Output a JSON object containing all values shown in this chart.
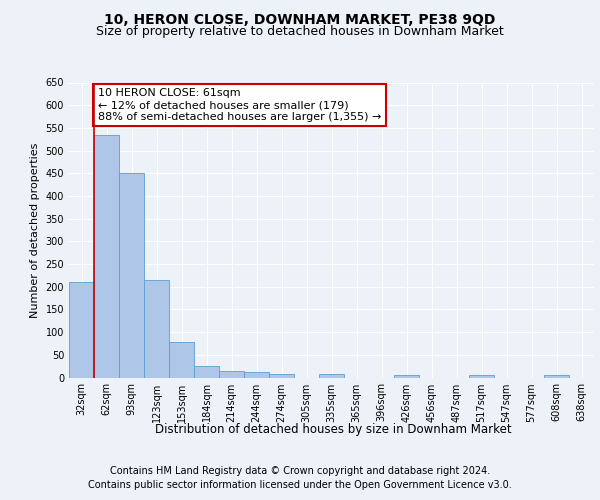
{
  "title1": "10, HERON CLOSE, DOWNHAM MARKET, PE38 9QD",
  "title2": "Size of property relative to detached houses in Downham Market",
  "xlabel": "Distribution of detached houses by size in Downham Market",
  "ylabel": "Number of detached properties",
  "categories": [
    "32sqm",
    "62sqm",
    "93sqm",
    "123sqm",
    "153sqm",
    "184sqm",
    "214sqm",
    "244sqm",
    "274sqm",
    "305sqm",
    "335sqm",
    "365sqm",
    "396sqm",
    "426sqm",
    "456sqm",
    "487sqm",
    "517sqm",
    "547sqm",
    "577sqm",
    "608sqm",
    "638sqm"
  ],
  "values": [
    210,
    535,
    450,
    215,
    78,
    26,
    15,
    12,
    7,
    0,
    7,
    0,
    0,
    6,
    0,
    0,
    6,
    0,
    0,
    6,
    0
  ],
  "bar_color": "#aec6e8",
  "bar_edge_color": "#5a9fd4",
  "annotation_text": "10 HERON CLOSE: 61sqm\n← 12% of detached houses are smaller (179)\n88% of semi-detached houses are larger (1,355) →",
  "annotation_box_color": "#ffffff",
  "annotation_box_edge": "#cc0000",
  "vline_x": 0.5,
  "vline_color": "#cc0000",
  "ylim": [
    0,
    650
  ],
  "yticks": [
    0,
    50,
    100,
    150,
    200,
    250,
    300,
    350,
    400,
    450,
    500,
    550,
    600,
    650
  ],
  "footer1": "Contains HM Land Registry data © Crown copyright and database right 2024.",
  "footer2": "Contains public sector information licensed under the Open Government Licence v3.0.",
  "bg_color": "#edf1f8",
  "plot_bg_color": "#edf1f8",
  "title1_fontsize": 10,
  "title2_fontsize": 9,
  "xlabel_fontsize": 8.5,
  "ylabel_fontsize": 8,
  "footer_fontsize": 7,
  "tick_fontsize": 7,
  "ann_fontsize": 8
}
